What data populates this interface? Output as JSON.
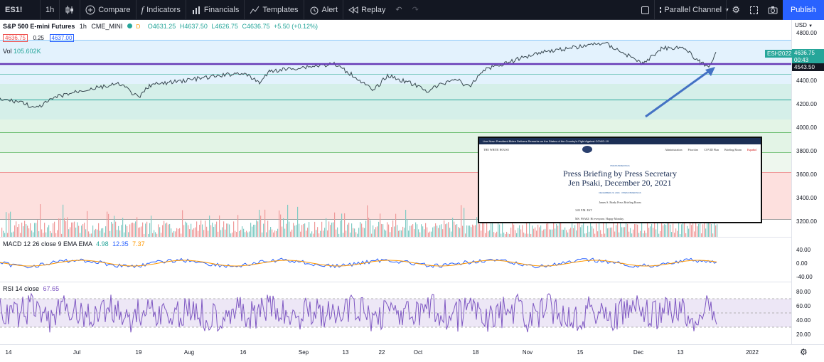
{
  "toolbar": {
    "symbol": "ES1!",
    "interval": "1h",
    "compare": "Compare",
    "indicators": "Indicators",
    "financials": "Financials",
    "templates": "Templates",
    "alert": "Alert",
    "replay": "Replay",
    "drawing_tool": "Parallel Channel",
    "publish": "Publish"
  },
  "legend": {
    "title": "S&P 500 E-mini Futures",
    "interval": "1h",
    "exchange": "CME_MINI",
    "dot_label": "D",
    "open": "O4631.25",
    "high": "H4637.50",
    "low": "L4626.75",
    "close": "C4636.75",
    "change": "+5.50 (+0.12%)",
    "bid": "4636.75",
    "spread": "0.25",
    "ask": "4637.00",
    "vol_label": "Vol",
    "vol_value": "105.602K",
    "macd_label": "MACD 12 26 close 9 EMA EMA",
    "macd_v1": "4.98",
    "macd_v2": "12.35",
    "macd_v3": "7.37",
    "rsi_label": "RSI 14 close",
    "rsi_value": "67.65"
  },
  "price_axis": {
    "currency": "USD",
    "labels": [
      "4800.00",
      "4400.00",
      "4200.00",
      "4000.00",
      "3800.00",
      "3600.00",
      "3400.00",
      "3200.00"
    ],
    "symbol_tag": "ESH2022",
    "last_price": "4636.75",
    "countdown": "00:43",
    "line_price": "4543.50",
    "macd_labels": [
      "40.00",
      "0.00",
      "-40.00"
    ],
    "rsi_labels": [
      "80.00",
      "60.00",
      "40.00",
      "20.00"
    ]
  },
  "time_axis": [
    "14",
    "Jul",
    "19",
    "Aug",
    "16",
    "Sep",
    "13",
    "22",
    "Oct",
    "18",
    "Nov",
    "15",
    "Dec",
    "13",
    "2022"
  ],
  "embed": {
    "topbar": "Live Now: President Biden Delivers Remarks on the Status of the Country's Fight Against COVID-19",
    "brand": "THE WHITE HOUSE",
    "nav": [
      "Administration",
      "Priorities",
      "COVID Plan",
      "Briefing Room",
      "Español"
    ],
    "category": "PRESS BRIEFINGS",
    "title_line1": "Press Briefing by Press Secretary",
    "title_line2": "Jen Psaki, December 20, 2021",
    "date": "DECEMBER 20, 2021 · PRESS BRIEFINGS",
    "place": "James S. Brady Press Briefing Room",
    "time": "3:03 P.M. EST",
    "first_line": "MS. PSAKI: Hi everyone. Happy Monday."
  },
  "colors": {
    "accent": "#2962ff",
    "up": "#26a69a",
    "down": "#ef5350",
    "channel": "#673ab7",
    "rsi": "#7e57c2",
    "macd_signal": "#ff9800"
  }
}
